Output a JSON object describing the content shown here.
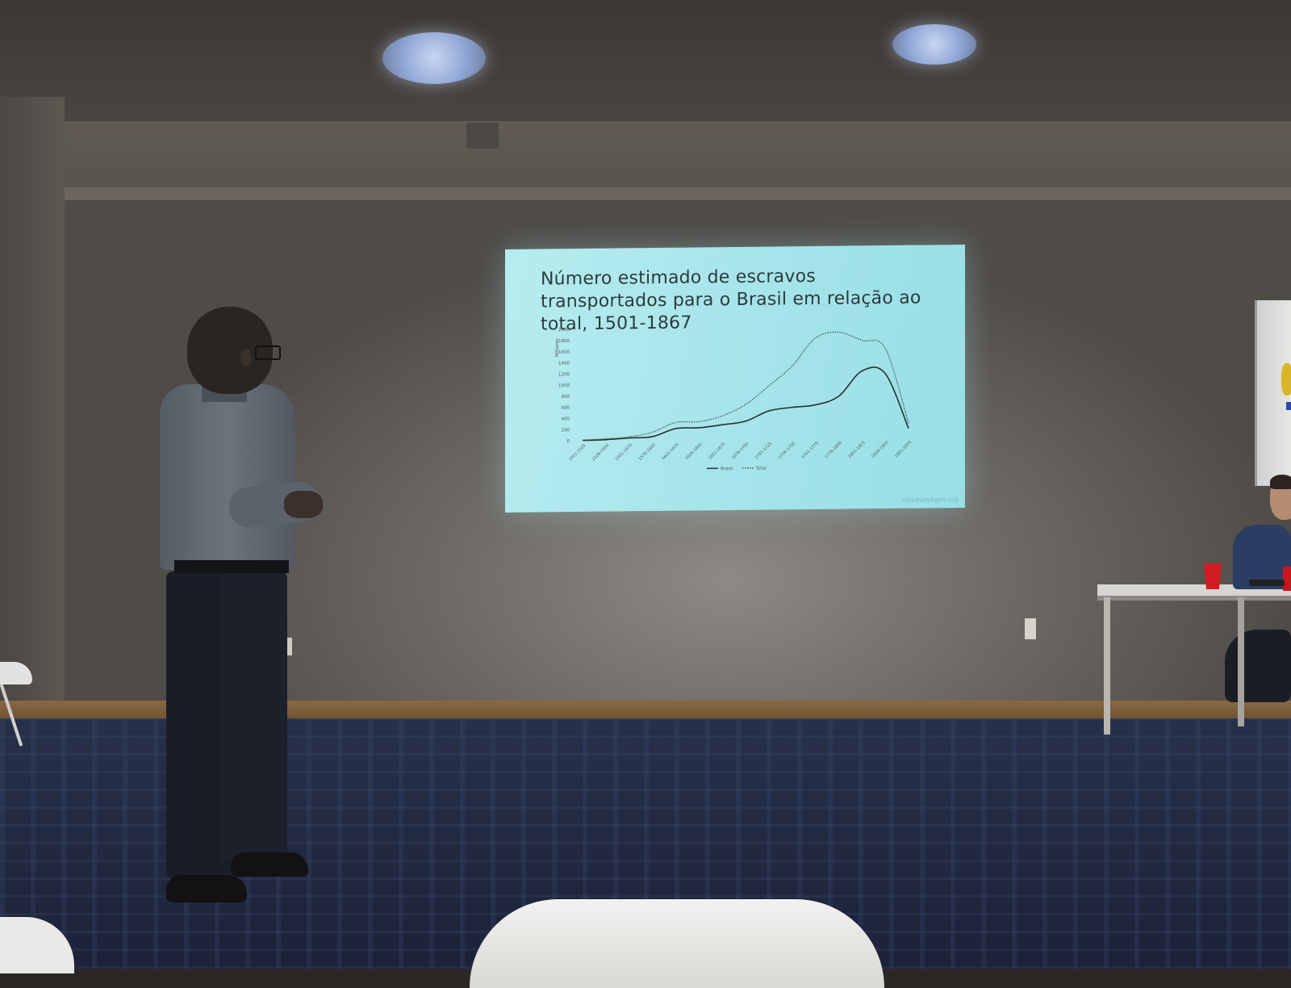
{
  "slide": {
    "title": "Número estimado de escravos transportados para o Brasil em relação ao total, 1501-1867",
    "watermark": "slavevoyages.org"
  },
  "chart_data": {
    "type": "line",
    "ylabel": "Milhares",
    "ylim": [
      0,
      2000
    ],
    "y_ticks": [
      0,
      200,
      400,
      600,
      800,
      1000,
      1200,
      1400,
      1600,
      1800,
      2000
    ],
    "categories": [
      "1501-1525",
      "1526-1550",
      "1551-1575",
      "1576-1600",
      "1601-1625",
      "1626-1650",
      "1651-1675",
      "1676-1700",
      "1701-1725",
      "1726-1750",
      "1751-1775",
      "1776-1800",
      "1801-1825",
      "1826-1850",
      "1851-1875"
    ],
    "x_ticks_shown": [
      "1501-1525",
      "1526-1550",
      "1551-1575",
      "1576-1600",
      "1601-1625",
      "1626-1650",
      "1651-1675",
      "1676-1700",
      "1701-1725",
      "1726-1750",
      "1751-1775",
      "1776-1800",
      "1801-1825",
      "1826-1850",
      "1851-1875"
    ],
    "series": [
      {
        "name": "Brasil",
        "style": "solid",
        "color": "#2a2f33",
        "values": [
          5,
          15,
          40,
          60,
          200,
          210,
          260,
          320,
          500,
          560,
          600,
          750,
          1200,
          1150,
          160
        ]
      },
      {
        "name": "Total",
        "style": "dotted",
        "color": "#4a5256",
        "values": [
          10,
          30,
          60,
          140,
          310,
          320,
          420,
          620,
          950,
          1300,
          1800,
          1900,
          1750,
          1600,
          250
        ]
      }
    ],
    "legend": {
      "placement": "bottom",
      "entries": [
        "Brasil",
        "Total"
      ]
    },
    "grid": false
  }
}
